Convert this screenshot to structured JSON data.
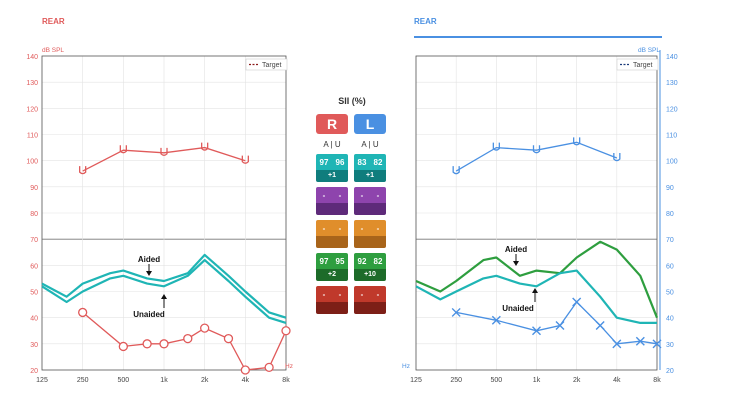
{
  "left_panel": {
    "header": "REAR",
    "unit": "dB SPL",
    "legend": "Target",
    "color": "#e05a5a"
  },
  "right_panel": {
    "header": "REAR",
    "unit": "dB SPL",
    "legend": "Target",
    "color": "#4a90e2",
    "hz_label": "Hz"
  },
  "y_ticks": [
    "140",
    "130",
    "120",
    "110",
    "100",
    "90",
    "80",
    "70",
    "60",
    "50",
    "40",
    "30",
    "20"
  ],
  "x_ticks": [
    "125",
    "250",
    "500",
    "1k",
    "2k",
    "4k",
    "8k"
  ],
  "hz_label": "Hz",
  "annotations": {
    "aided": "Aided",
    "unaided": "Unaided"
  },
  "sii": {
    "title": "SII (%)",
    "r_label": "R",
    "l_label": "L",
    "a_label": "A",
    "u_label": "U",
    "rows": [
      {
        "color": "#1fb5b5",
        "dark": "#0f7d7d",
        "r": {
          "a": "97",
          "u": "96",
          "delta": "+1"
        },
        "l": {
          "a": "83",
          "u": "82",
          "delta": "+1"
        }
      },
      {
        "color": "#8e44ad",
        "dark": "#5e2a7a",
        "r": {
          "a": "-",
          "u": "-",
          "delta": ""
        },
        "l": {
          "a": "-",
          "u": "-",
          "delta": ""
        }
      },
      {
        "color": "#e08e2b",
        "dark": "#a8641a",
        "r": {
          "a": "-",
          "u": "-",
          "delta": ""
        },
        "l": {
          "a": "-",
          "u": "-",
          "delta": ""
        }
      },
      {
        "color": "#2e9e3f",
        "dark": "#1d6b29",
        "r": {
          "a": "97",
          "u": "95",
          "delta": "+2"
        },
        "l": {
          "a": "92",
          "u": "82",
          "delta": "+10"
        }
      },
      {
        "color": "#c0392b",
        "dark": "#7d1f17",
        "r": {
          "a": "-",
          "u": "-",
          "delta": ""
        },
        "l": {
          "a": "-",
          "u": "-",
          "delta": ""
        }
      }
    ]
  },
  "chart_data": [
    {
      "type": "line",
      "title": "REAR",
      "ylabel": "dB SPL",
      "xlabel": "Hz",
      "ylim": [
        20,
        140
      ],
      "x_scale": "log",
      "x": [
        "125",
        "250",
        "500",
        "1k",
        "2k",
        "4k",
        "8k"
      ],
      "series": [
        {
          "name": "Target",
          "style": "dashed",
          "color": "#8b1a1a",
          "points": []
        },
        {
          "name": "UCL",
          "color": "#e05a5a",
          "points": [
            [
              250,
              96
            ],
            [
              500,
              104
            ],
            [
              1000,
              103
            ],
            [
              2000,
              105
            ],
            [
              4000,
              100
            ]
          ]
        },
        {
          "name": "Threshold",
          "color": "#e05a5a",
          "marker": "circle",
          "points": [
            [
              250,
              42
            ],
            [
              500,
              29
            ],
            [
              750,
              30
            ],
            [
              1000,
              30
            ],
            [
              1500,
              32
            ],
            [
              2000,
              36
            ],
            [
              3000,
              32
            ],
            [
              4000,
              20
            ],
            [
              6000,
              21
            ],
            [
              8000,
              35
            ]
          ]
        },
        {
          "name": "Aided",
          "color": "#1fb5b5",
          "points": [
            [
              125,
              53
            ],
            [
              190,
              48
            ],
            [
              250,
              53
            ],
            [
              400,
              57
            ],
            [
              500,
              58
            ],
            [
              750,
              55
            ],
            [
              1000,
              54
            ],
            [
              1500,
              57
            ],
            [
              2000,
              64
            ],
            [
              3000,
              56
            ],
            [
              4000,
              50
            ],
            [
              6000,
              42
            ],
            [
              8000,
              40
            ]
          ]
        },
        {
          "name": "Unaided",
          "color": "#1fb5b5",
          "points": [
            [
              125,
              52
            ],
            [
              190,
              46
            ],
            [
              250,
              50
            ],
            [
              400,
              55
            ],
            [
              500,
              56
            ],
            [
              750,
              53
            ],
            [
              1000,
              52
            ],
            [
              1500,
              56
            ],
            [
              2000,
              62
            ],
            [
              3000,
              54
            ],
            [
              4000,
              48
            ],
            [
              6000,
              40
            ],
            [
              8000,
              38
            ]
          ]
        }
      ]
    },
    {
      "type": "line",
      "title": "REAR",
      "ylabel": "dB SPL",
      "xlabel": "Hz",
      "ylim": [
        20,
        140
      ],
      "x_scale": "log",
      "x": [
        "125",
        "250",
        "500",
        "1k",
        "2k",
        "4k",
        "8k"
      ],
      "series": [
        {
          "name": "Target",
          "style": "dashed",
          "color": "#1a3a7a",
          "points": []
        },
        {
          "name": "UCL",
          "color": "#4a90e2",
          "points": [
            [
              250,
              96
            ],
            [
              500,
              105
            ],
            [
              1000,
              104
            ],
            [
              2000,
              107
            ],
            [
              4000,
              101
            ]
          ]
        },
        {
          "name": "Threshold",
          "color": "#4a90e2",
          "marker": "cross",
          "points": [
            [
              250,
              42
            ],
            [
              500,
              39
            ],
            [
              1000,
              35
            ],
            [
              1500,
              37
            ],
            [
              2000,
              46
            ],
            [
              3000,
              37
            ],
            [
              4000,
              30
            ],
            [
              6000,
              31
            ],
            [
              8000,
              30
            ]
          ]
        },
        {
          "name": "Aided",
          "color": "#2e9e3f",
          "points": [
            [
              125,
              54
            ],
            [
              190,
              50
            ],
            [
              250,
              54
            ],
            [
              400,
              62
            ],
            [
              500,
              63
            ],
            [
              750,
              56
            ],
            [
              1000,
              58
            ],
            [
              1500,
              57
            ],
            [
              2000,
              63
            ],
            [
              3000,
              69
            ],
            [
              4000,
              66
            ],
            [
              6000,
              56
            ],
            [
              8000,
              40
            ]
          ]
        },
        {
          "name": "Unaided",
          "color": "#1fb5b5",
          "points": [
            [
              125,
              52
            ],
            [
              190,
              47
            ],
            [
              250,
              50
            ],
            [
              400,
              55
            ],
            [
              500,
              56
            ],
            [
              750,
              53
            ],
            [
              1000,
              52
            ],
            [
              1500,
              57
            ],
            [
              2000,
              58
            ],
            [
              3000,
              48
            ],
            [
              4000,
              40
            ],
            [
              6000,
              38
            ],
            [
              8000,
              38
            ]
          ]
        }
      ]
    }
  ]
}
